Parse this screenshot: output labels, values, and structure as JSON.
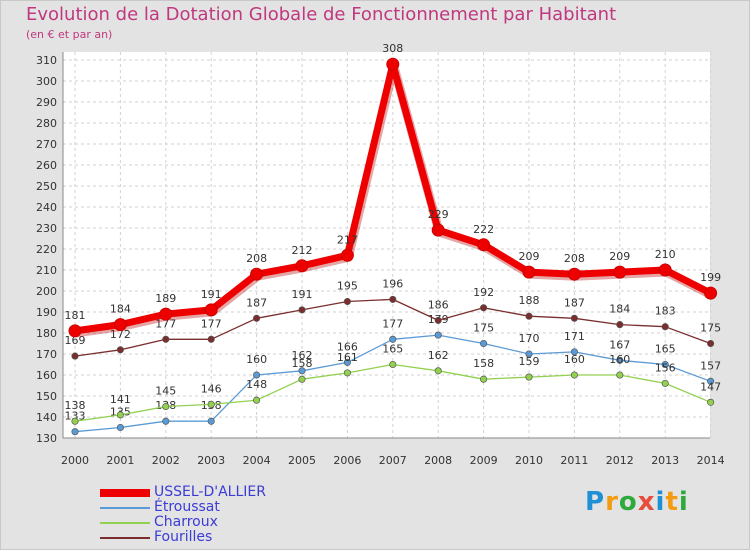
{
  "chart_data": {
    "type": "line",
    "title": "Evolution de la Dotation Globale de Fonctionnement par Habitant",
    "subtitle": "(en € et par an)",
    "x": [
      "2000",
      "2001",
      "2002",
      "2003",
      "2004",
      "2005",
      "2006",
      "2007",
      "2008",
      "2009",
      "2010",
      "2011",
      "2012",
      "2013",
      "2014"
    ],
    "ylim": [
      130,
      310
    ],
    "yticks": [
      130,
      140,
      150,
      160,
      170,
      180,
      190,
      200,
      210,
      220,
      230,
      240,
      250,
      260,
      270,
      280,
      290,
      300,
      310
    ],
    "series": [
      {
        "name": "USSEL-D'ALLIER",
        "color": "#ee0000",
        "values": [
          181,
          184,
          189,
          191,
          208,
          212,
          217,
          308,
          229,
          222,
          209,
          208,
          209,
          210,
          199
        ]
      },
      {
        "name": "Étroussat",
        "color": "#5b9bd5",
        "values": [
          133,
          135,
          138,
          138,
          160,
          162,
          166,
          177,
          179,
          175,
          170,
          171,
          167,
          165,
          157
        ]
      },
      {
        "name": "Charroux",
        "color": "#92d050",
        "values": [
          138,
          141,
          145,
          146,
          148,
          158,
          161,
          165,
          162,
          158,
          159,
          160,
          160,
          156,
          147
        ]
      },
      {
        "name": "Fourilles",
        "color": "#7a2e2e",
        "values": [
          169,
          172,
          177,
          177,
          187,
          191,
          195,
          196,
          186,
          192,
          188,
          187,
          184,
          183,
          175
        ]
      }
    ]
  },
  "brand": {
    "letters": [
      "P",
      "r",
      "o",
      "x",
      "i",
      "t",
      "i"
    ],
    "colors": [
      "#1f8fd6",
      "#f39c12",
      "#2eaa3c",
      "#e74c3c",
      "#1f8fd6",
      "#f39c12",
      "#2eaa3c"
    ]
  }
}
